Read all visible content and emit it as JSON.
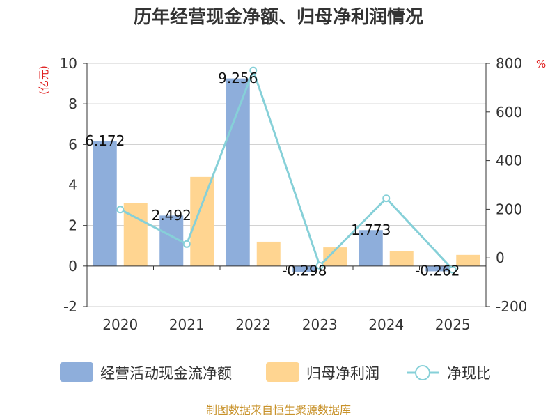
{
  "chart_data": {
    "type": "bar",
    "title": "历年经营现金净额、归母净利润情况",
    "categories": [
      "2020",
      "2021",
      "2022",
      "2023",
      "2024",
      "2025"
    ],
    "series": [
      {
        "name": "经营活动现金流净额",
        "kind": "bar",
        "axis": "left",
        "color": "#8eaedb",
        "values": [
          6.172,
          2.492,
          9.256,
          -0.298,
          1.773,
          -0.262
        ]
      },
      {
        "name": "归母净利润",
        "kind": "bar",
        "axis": "left",
        "color": "#ffd591",
        "values": [
          3.1,
          4.4,
          1.2,
          0.92,
          0.72,
          0.55
        ]
      },
      {
        "name": "净现比",
        "kind": "line",
        "axis": "right",
        "color": "#86d0d8",
        "values": [
          199,
          57,
          771,
          -32,
          245,
          -48
        ]
      }
    ],
    "data_labels": [
      "6.172",
      "2.492",
      "9.256",
      "-0.298",
      "1.773",
      "-0.262"
    ],
    "y_left": {
      "unit": "(亿元)",
      "min": -2,
      "max": 10,
      "ticks": [
        "-2",
        "0",
        "2",
        "4",
        "6",
        "8",
        "10"
      ]
    },
    "y_right": {
      "unit": "%",
      "min": -200,
      "max": 800,
      "ticks": [
        "-200",
        "0",
        "200",
        "400",
        "600",
        "800"
      ]
    },
    "grid": true,
    "legend_position": "bottom"
  },
  "source": "制图数据来自恒生聚源数据库"
}
